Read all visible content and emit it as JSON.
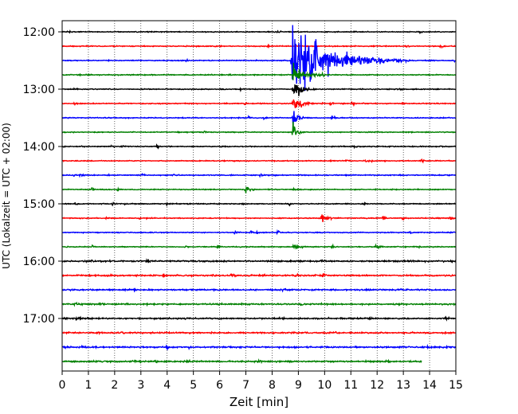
{
  "chart_data": {
    "type": "line",
    "title": "",
    "xlabel": "Zeit  [min]",
    "ylabel": "UTC (Lokalzeit = UTC + 02:00)",
    "xlim": [
      0,
      15
    ],
    "xticks": [
      0,
      1,
      2,
      3,
      4,
      5,
      6,
      7,
      8,
      9,
      10,
      11,
      12,
      13,
      14,
      15
    ],
    "x_tick_labels": [
      "0",
      "1",
      "2",
      "3",
      "4",
      "5",
      "6",
      "7",
      "8",
      "9",
      "10",
      "11",
      "12",
      "13",
      "14",
      "15"
    ],
    "y_tick_labels": [
      "12:00",
      "13:00",
      "14:00",
      "15:00",
      "16:00",
      "17:00"
    ],
    "y_tick_rows": [
      0,
      4,
      8,
      12,
      16,
      20
    ],
    "grid": "vertical-dotted",
    "trace_start": "12:00",
    "trace_interval_min": 15,
    "trace_count": 24,
    "color_cycle": [
      "#000000",
      "#ff0000",
      "#0000ff",
      "#008000"
    ],
    "noise_amplitude": 0.035,
    "events": [
      {
        "row": 2,
        "time_min": 8.75,
        "amplitude": 3.0,
        "duration_min": 4.5,
        "note": "large earthquake, clipped"
      },
      {
        "row": 3,
        "time_min": 8.8,
        "amplitude": 1.1,
        "duration_min": 1.2
      },
      {
        "row": 4,
        "time_min": 8.8,
        "amplitude": 1.0,
        "duration_min": 0.9
      },
      {
        "row": 5,
        "time_min": 8.8,
        "amplitude": 0.8,
        "duration_min": 0.8
      },
      {
        "row": 6,
        "time_min": 8.8,
        "amplitude": 0.8,
        "duration_min": 0.5
      },
      {
        "row": 7,
        "time_min": 8.8,
        "amplitude": 0.8,
        "duration_min": 0.4
      },
      {
        "row": 11,
        "time_min": 7.0,
        "amplitude": 0.22,
        "duration_min": 0.5
      },
      {
        "row": 13,
        "time_min": 9.9,
        "amplitude": 0.45,
        "duration_min": 0.7
      },
      {
        "row": 15,
        "time_min": 8.8,
        "amplitude": 0.3,
        "duration_min": 0.6
      },
      {
        "row": 17,
        "time_min": 6.45,
        "amplitude": 0.25,
        "duration_min": 0.2
      },
      {
        "row": 17,
        "time_min": 9.95,
        "amplitude": 0.2,
        "duration_min": 0.2
      }
    ],
    "last_trace_end_min": 13.7
  }
}
